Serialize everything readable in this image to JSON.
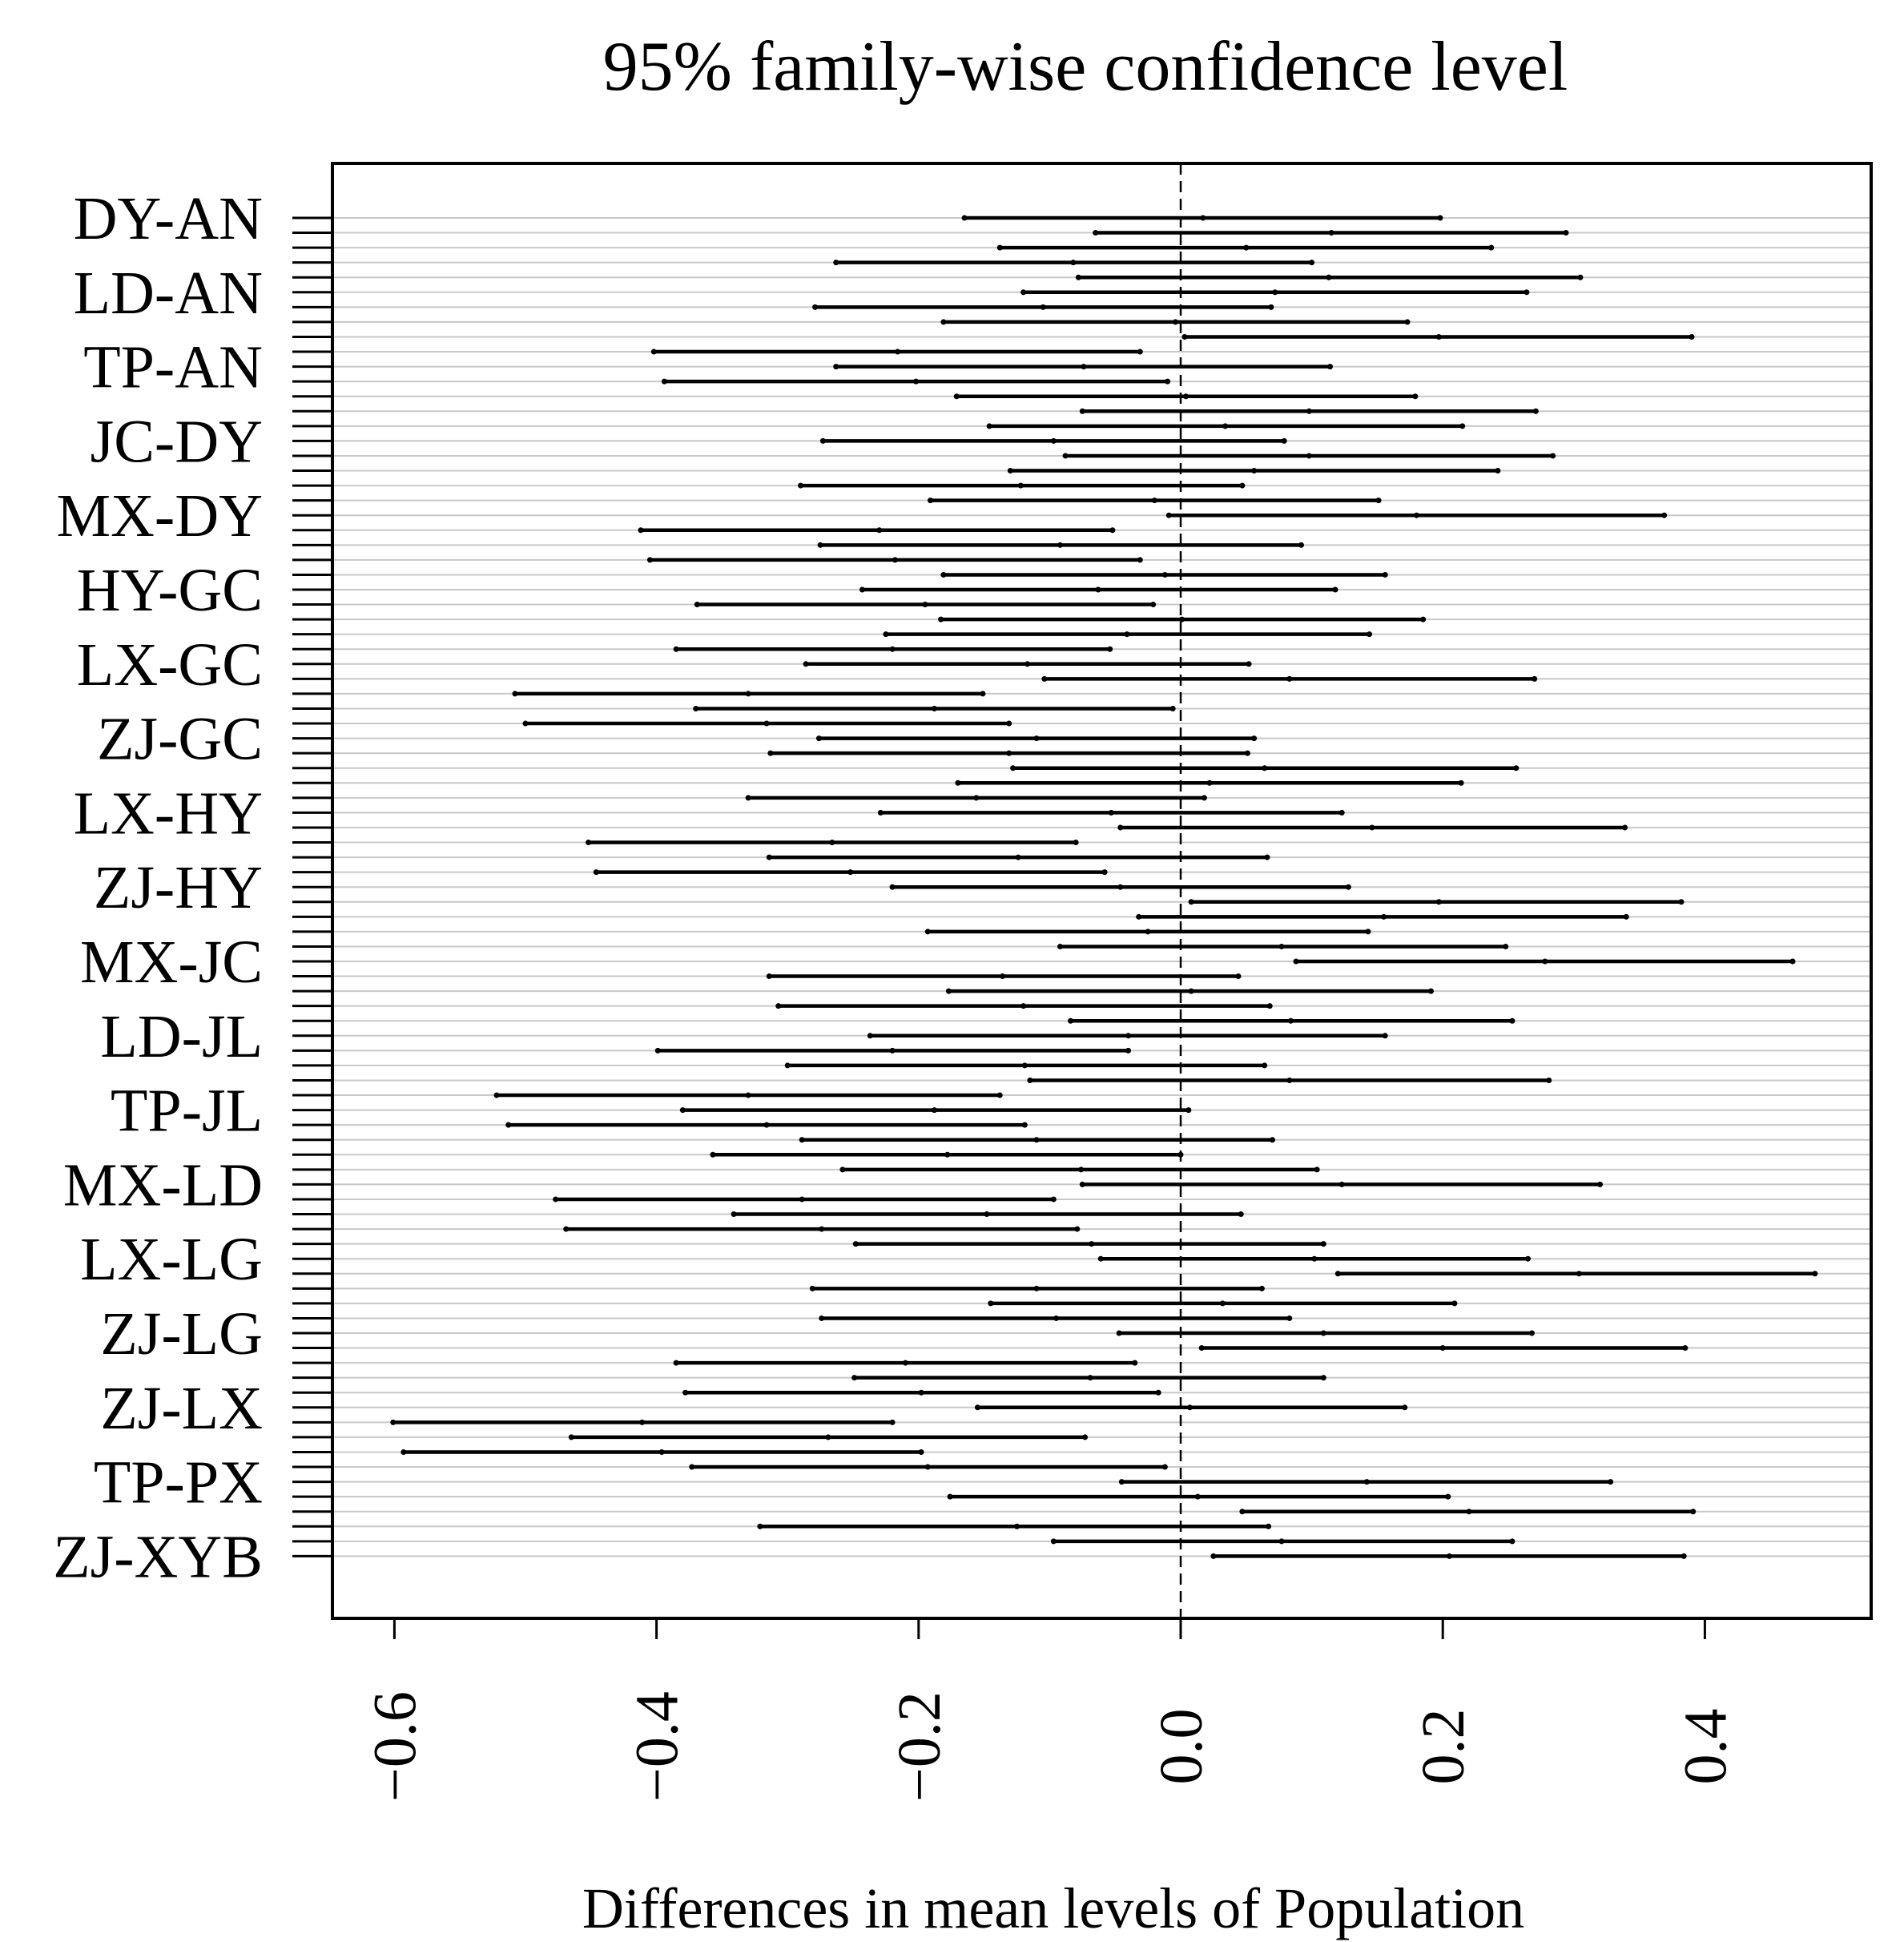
{
  "chart_data": {
    "type": "interval",
    "title": "95% family-wise confidence level",
    "xlabel": "Differences in mean levels of Population",
    "ylabel": "",
    "xlim": [
      -0.6,
      0.4
    ],
    "x_ticks": [
      "-0.6",
      "-0.4",
      "-0.2",
      "0.0",
      "0.2",
      "0.4"
    ],
    "reference_line_x": 0,
    "visible_y_labels": [
      "DY-AN",
      "LD-AN",
      "TP-AN",
      "JC-DY",
      "MX-DY",
      "HY-GC",
      "LX-GC",
      "ZJ-GC",
      "LX-HY",
      "ZJ-HY",
      "MX-JC",
      "LD-JL",
      "TP-JL",
      "MX-LD",
      "LX-LG",
      "ZJ-LG",
      "ZJ-LX",
      "TP-PX",
      "ZJ-XYB"
    ],
    "intervals": [
      [
        -0.165,
        0.017,
        0.198
      ],
      [
        -0.065,
        0.115,
        0.294
      ],
      [
        -0.138,
        0.05,
        0.237
      ],
      [
        -0.263,
        -0.082,
        0.1
      ],
      [
        -0.078,
        0.113,
        0.305
      ],
      [
        -0.12,
        0.072,
        0.264
      ],
      [
        -0.279,
        -0.105,
        0.069
      ],
      [
        -0.181,
        -0.004,
        0.173
      ],
      [
        0.003,
        0.197,
        0.39
      ],
      [
        -0.402,
        -0.216,
        -0.031
      ],
      [
        -0.263,
        -0.074,
        0.114
      ],
      [
        -0.394,
        -0.202,
        -0.01
      ],
      [
        -0.171,
        0.004,
        0.179
      ],
      [
        -0.075,
        0.098,
        0.271
      ],
      [
        -0.146,
        0.034,
        0.215
      ],
      [
        -0.273,
        -0.097,
        0.079
      ],
      [
        -0.088,
        0.098,
        0.284
      ],
      [
        -0.13,
        0.056,
        0.242
      ],
      [
        -0.29,
        -0.122,
        0.047
      ],
      [
        -0.191,
        -0.02,
        0.151
      ],
      [
        -0.009,
        0.18,
        0.369
      ],
      [
        -0.412,
        -0.23,
        -0.052
      ],
      [
        -0.275,
        -0.092,
        0.092
      ],
      [
        -0.405,
        -0.218,
        -0.031
      ],
      [
        -0.181,
        -0.012,
        0.156
      ],
      [
        -0.243,
        -0.063,
        0.118
      ],
      [
        -0.369,
        -0.195,
        -0.021
      ],
      [
        -0.183,
        0.001,
        0.185
      ],
      [
        -0.225,
        -0.041,
        0.144
      ],
      [
        -0.385,
        -0.22,
        -0.054
      ],
      [
        -0.286,
        -0.117,
        0.052
      ],
      [
        -0.104,
        0.083,
        0.27
      ],
      [
        -0.508,
        -0.33,
        -0.151
      ],
      [
        -0.37,
        -0.188,
        -0.006
      ],
      [
        -0.5,
        -0.316,
        -0.131
      ],
      [
        -0.276,
        -0.11,
        0.056
      ],
      [
        -0.313,
        -0.131,
        0.051
      ],
      [
        -0.128,
        0.064,
        0.256
      ],
      [
        -0.17,
        0.022,
        0.214
      ],
      [
        -0.33,
        -0.156,
        0.018
      ],
      [
        -0.229,
        -0.053,
        0.123
      ],
      [
        -0.046,
        0.146,
        0.339
      ],
      [
        -0.452,
        -0.266,
        -0.08
      ],
      [
        -0.314,
        -0.124,
        0.066
      ],
      [
        -0.446,
        -0.252,
        -0.058
      ],
      [
        -0.22,
        -0.046,
        0.128
      ],
      [
        0.008,
        0.197,
        0.382
      ],
      [
        -0.032,
        0.155,
        0.34
      ],
      [
        -0.193,
        -0.025,
        0.143
      ],
      [
        -0.092,
        0.077,
        0.248
      ],
      [
        0.088,
        0.278,
        0.467
      ],
      [
        -0.314,
        -0.136,
        0.044
      ],
      [
        -0.177,
        0.008,
        0.191
      ],
      [
        -0.307,
        -0.12,
        0.068
      ],
      [
        -0.084,
        0.084,
        0.253
      ],
      [
        -0.237,
        -0.04,
        0.156
      ],
      [
        -0.399,
        -0.22,
        -0.04
      ],
      [
        -0.3,
        -0.119,
        0.064
      ],
      [
        -0.115,
        0.083,
        0.281
      ],
      [
        -0.522,
        -0.33,
        -0.138
      ],
      [
        -0.38,
        -0.188,
        0.006
      ],
      [
        -0.513,
        -0.316,
        -0.119
      ],
      [
        -0.289,
        -0.11,
        0.07
      ],
      [
        -0.357,
        -0.178,
        0.0
      ],
      [
        -0.258,
        -0.076,
        0.104
      ],
      [
        -0.075,
        0.123,
        0.32
      ],
      [
        -0.477,
        -0.289,
        -0.097
      ],
      [
        -0.341,
        -0.148,
        0.046
      ],
      [
        -0.469,
        -0.274,
        -0.079
      ],
      [
        -0.248,
        -0.068,
        0.109
      ],
      [
        -0.061,
        0.102,
        0.265
      ],
      [
        0.12,
        0.304,
        0.484
      ],
      [
        -0.281,
        -0.11,
        0.062
      ],
      [
        -0.145,
        0.032,
        0.209
      ],
      [
        -0.274,
        -0.095,
        0.083
      ],
      [
        -0.047,
        0.109,
        0.268
      ],
      [
        0.016,
        0.2,
        0.385
      ],
      [
        -0.385,
        -0.21,
        -0.035
      ],
      [
        -0.249,
        -0.069,
        0.109
      ],
      [
        -0.378,
        -0.198,
        -0.017
      ],
      [
        -0.155,
        0.007,
        0.171
      ],
      [
        -0.601,
        -0.411,
        -0.22
      ],
      [
        -0.465,
        -0.269,
        -0.073
      ],
      [
        -0.593,
        -0.396,
        -0.198
      ],
      [
        -0.373,
        -0.193,
        -0.012
      ],
      [
        -0.045,
        0.142,
        0.328
      ],
      [
        -0.176,
        0.013,
        0.204
      ],
      [
        0.047,
        0.22,
        0.391
      ],
      [
        -0.321,
        -0.125,
        0.067
      ],
      [
        -0.097,
        0.077,
        0.253
      ],
      [
        0.025,
        0.205,
        0.384
      ]
    ]
  }
}
